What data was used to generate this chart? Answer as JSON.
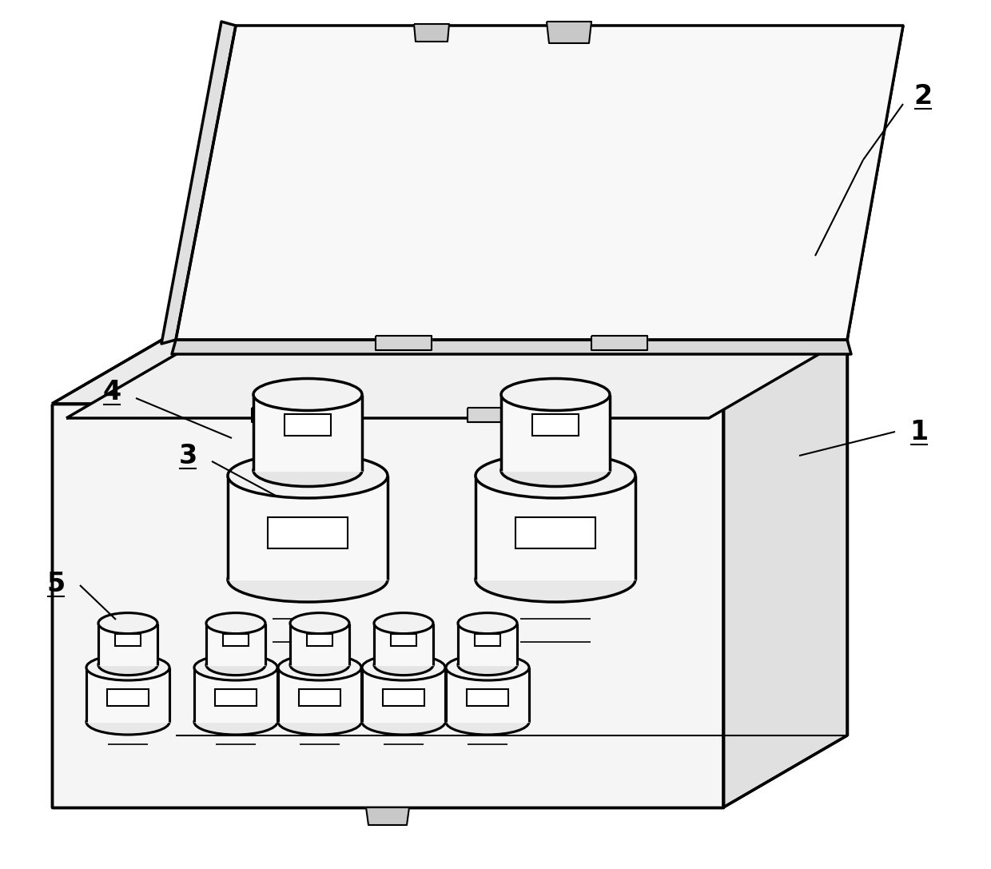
{
  "bg_color": "#ffffff",
  "line_color": "#000000",
  "lw": 2.5,
  "tlw": 1.5,
  "label_fontsize": 24,
  "label_fontweight": "bold"
}
